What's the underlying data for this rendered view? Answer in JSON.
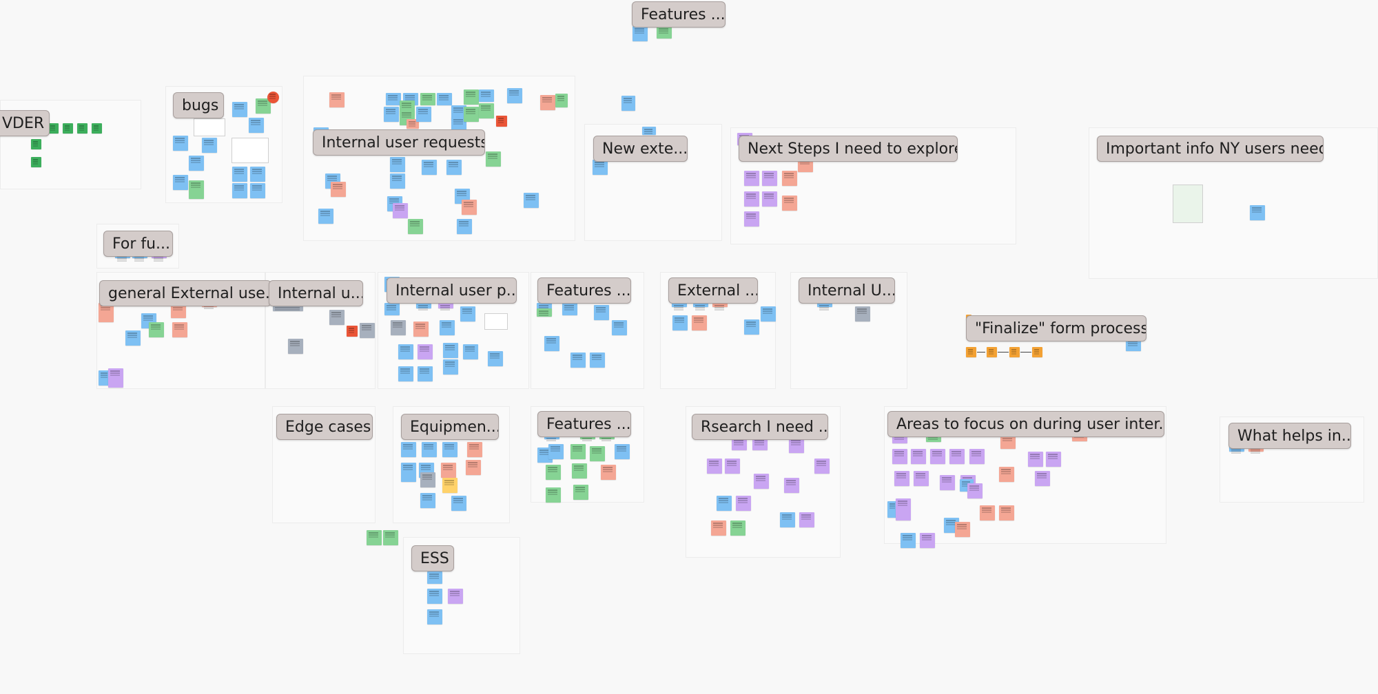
{
  "board": {
    "section_labels": {
      "features_top": "Features ...",
      "vder": "VDER",
      "bugs": "bugs",
      "internal_user_requests": "Internal user requests",
      "new_external": "New exte...",
      "next_steps": "Next Steps I need to explore",
      "important_info": "Important info NY users need",
      "for_future": "For fu...",
      "general_external": "general External use...",
      "internal_u": "Internal u...",
      "internal_user_p": "Internal user p...",
      "features_mid": "Features ...",
      "external": "External ...",
      "internal_U": "Internal U...",
      "finalize": "\"Finalize\" form process",
      "edge_cases": "Edge cases",
      "equipment": "Equipmen...",
      "features_low": "Features ...",
      "research": "Rsearch I need ...",
      "areas_focus": "Areas to focus on during user inter...",
      "what_helps": "What helps in...",
      "ess": "ESS"
    }
  },
  "colors": {
    "canvas_bg": "#f8f8f8",
    "label_bg": "#d4ccca",
    "sticky_blue": "#7ec0f3",
    "sticky_green": "#86d394",
    "sticky_purple": "#c9a5f2",
    "sticky_salmon": "#f4a694",
    "sticky_gray": "#a7b0bd",
    "sticky_orange": "#f3a133"
  }
}
